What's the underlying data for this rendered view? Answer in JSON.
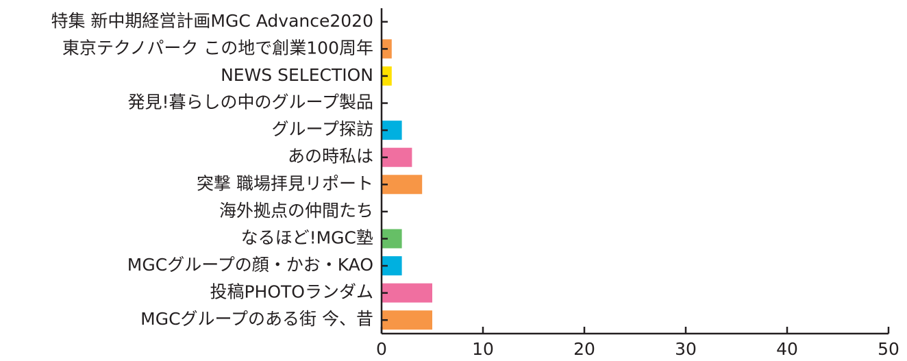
{
  "chart_data": {
    "type": "bar",
    "orientation": "horizontal",
    "categories": [
      "特集 新中期経営計画MGC Advance2020",
      "東京テクノパーク この地で創業100周年",
      "NEWS SELECTION",
      "発見!暮らしの中のグループ製品",
      "グループ探訪",
      "あの時私は",
      "突撃 職場拝見リポート",
      "海外拠点の仲間たち",
      "なるほど!MGC塾",
      "MGCグループの顔・かお・KAO",
      "投稿PHOTOランダム",
      "MGCグループのある街 今、昔"
    ],
    "values": [
      0,
      1,
      1,
      0,
      2,
      3,
      4,
      0,
      2,
      2,
      5,
      5
    ],
    "colors": [
      "#f79646",
      "#f79646",
      "#ffe100",
      "#00b0e0",
      "#00b0e0",
      "#f06fa0",
      "#f79646",
      "#66bf66",
      "#66bf66",
      "#00b0e0",
      "#f06fa0",
      "#f79646"
    ],
    "xlim": [
      0,
      50
    ],
    "xticks": [
      0,
      10,
      20,
      30,
      40,
      50
    ],
    "grid": false
  }
}
